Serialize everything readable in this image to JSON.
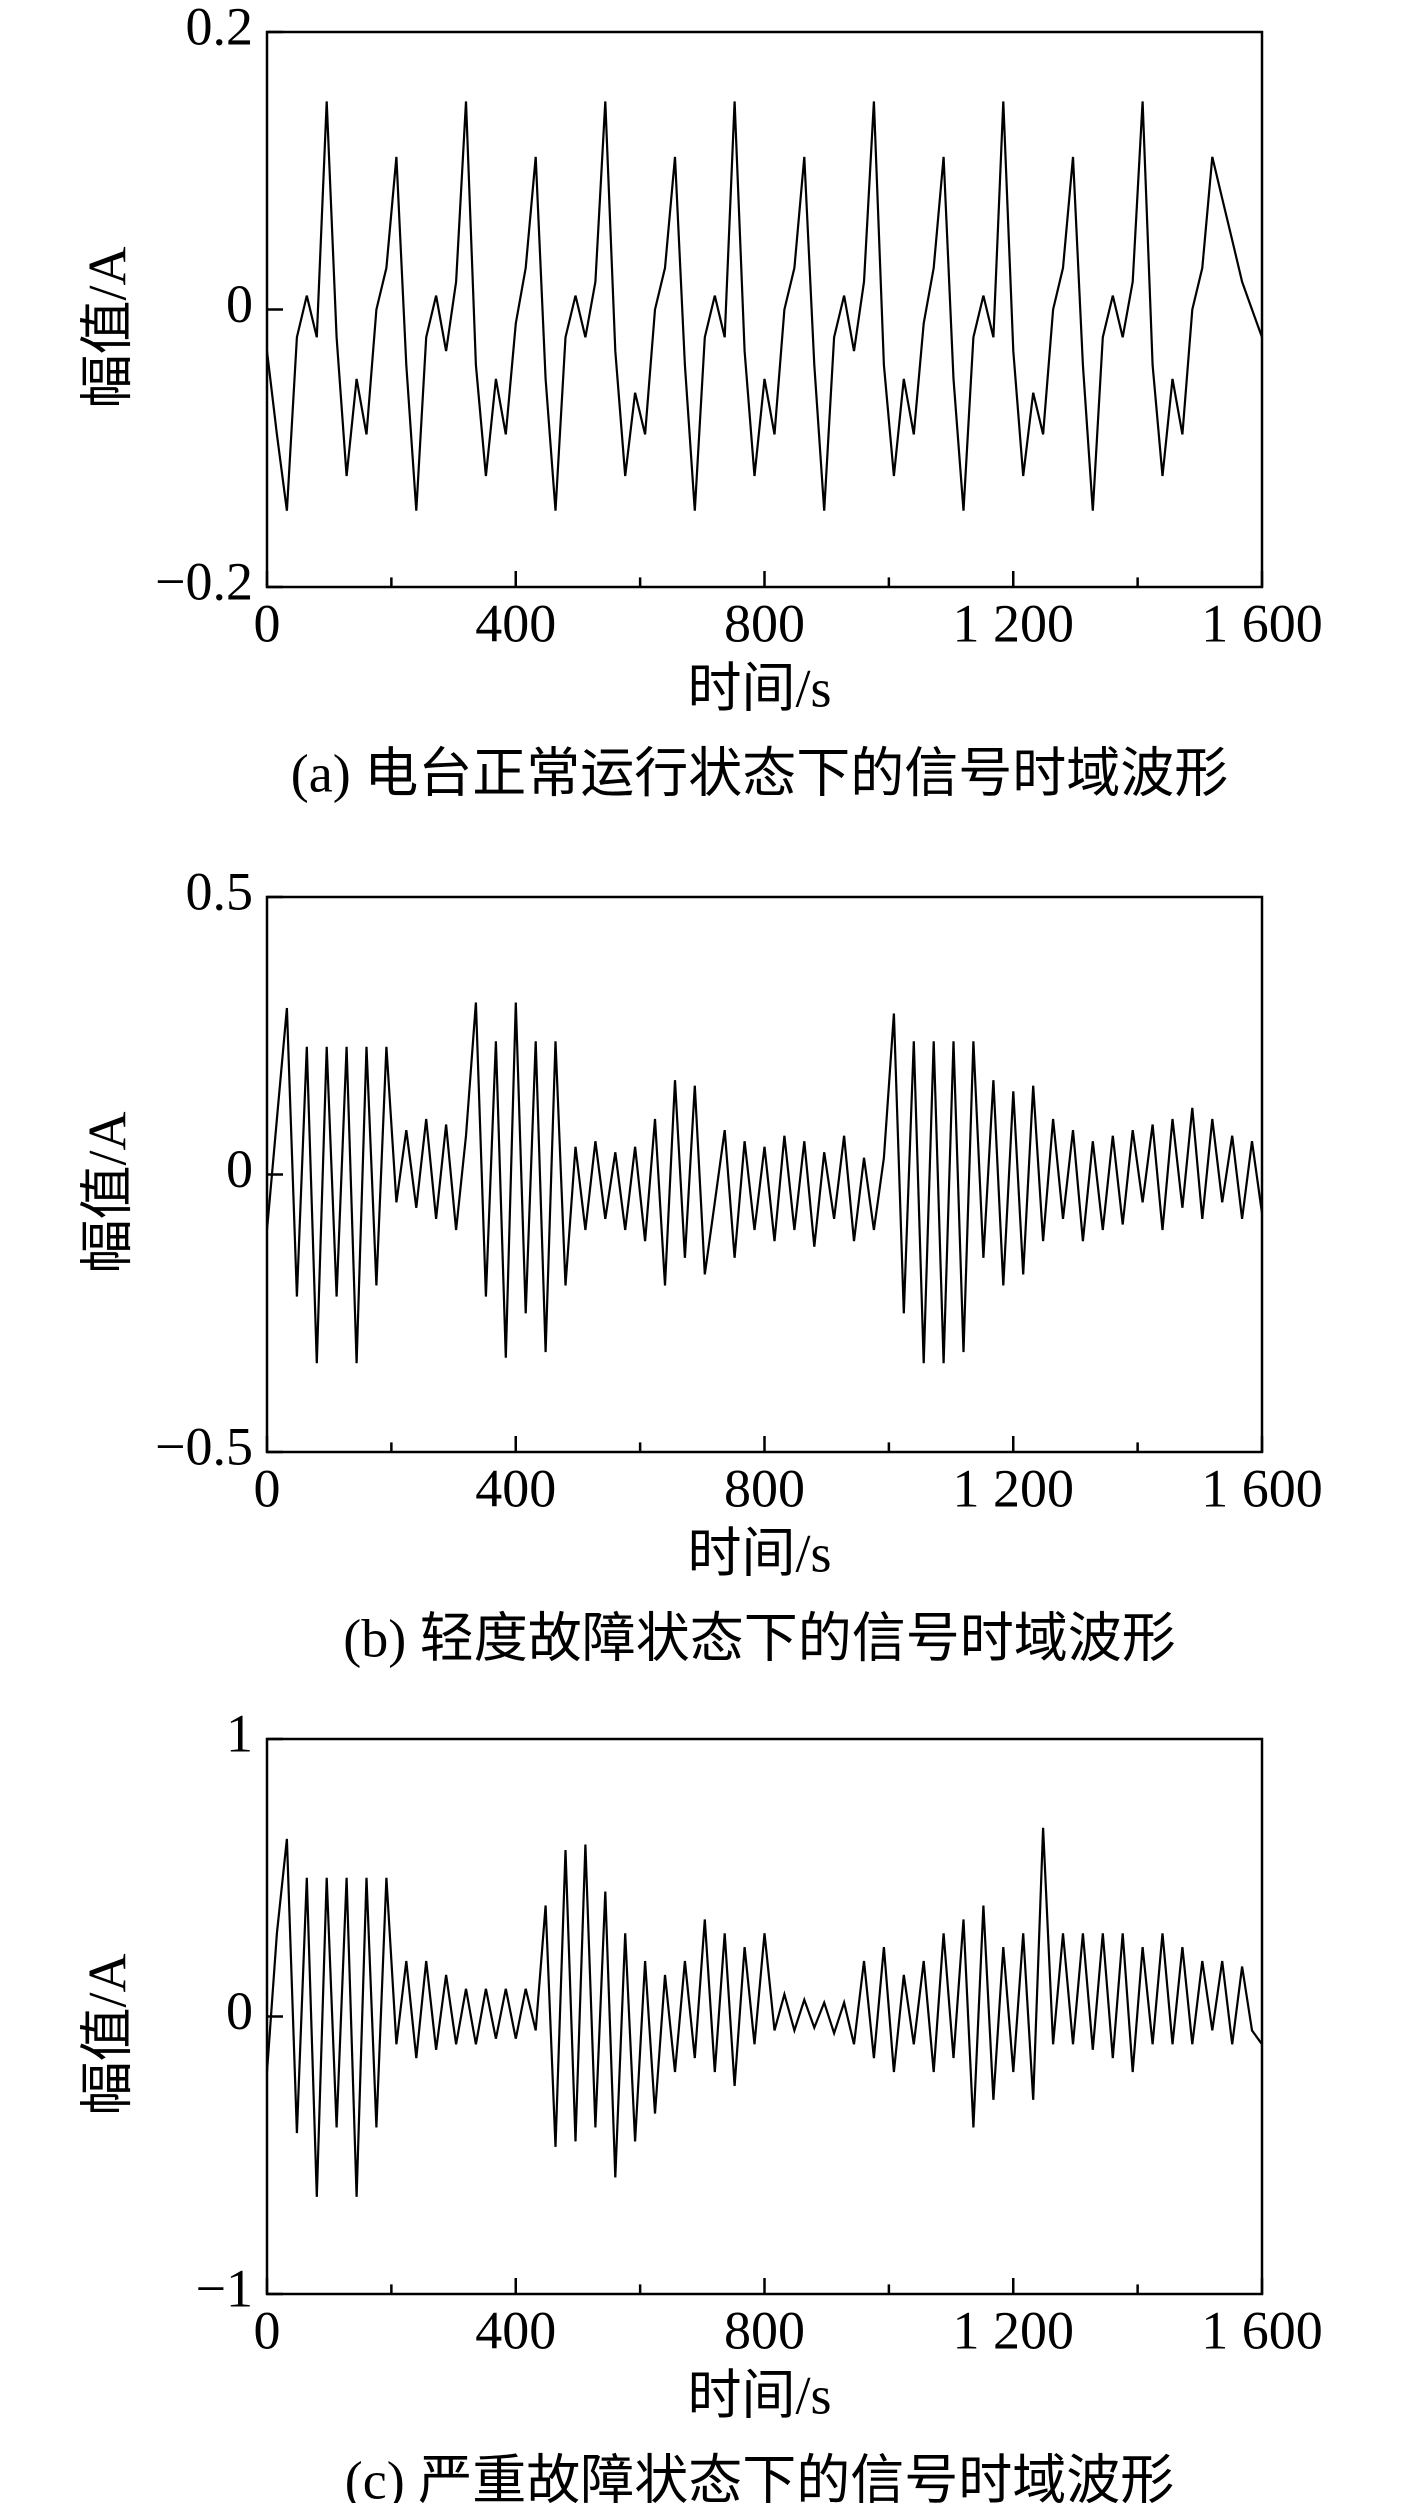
{
  "chart_data": [
    {
      "type": "line",
      "title": "(a) 电台正常运行状态下的信号时域波形",
      "xlabel": "时间/s",
      "ylabel": "幅值/A",
      "color": "#000000",
      "xlim": [
        0,
        1600
      ],
      "xticks": [
        0,
        400,
        800,
        {
          "value": 1200,
          "label": "1 200"
        },
        {
          "value": 1600,
          "label": "1 600"
        }
      ],
      "xminorticks": [
        200,
        600,
        1000,
        1400
      ],
      "ylim": [
        -0.2,
        0.2
      ],
      "yticks": [
        {
          "value": -0.2,
          "label": "−0.2"
        },
        0,
        0.2
      ],
      "x": [
        0,
        16,
        32,
        48,
        64,
        80,
        96,
        112,
        128,
        144,
        160,
        176,
        192,
        208,
        224,
        240,
        256,
        272,
        288,
        304,
        320,
        336,
        352,
        368,
        384,
        400,
        416,
        432,
        448,
        464,
        480,
        496,
        512,
        528,
        544,
        560,
        576,
        592,
        608,
        624,
        640,
        656,
        672,
        688,
        704,
        720,
        736,
        752,
        768,
        784,
        800,
        816,
        832,
        848,
        864,
        880,
        896,
        912,
        928,
        944,
        960,
        976,
        992,
        1008,
        1024,
        1040,
        1056,
        1072,
        1088,
        1104,
        1120,
        1136,
        1152,
        1168,
        1184,
        1200,
        1216,
        1232,
        1248,
        1264,
        1280,
        1296,
        1312,
        1328,
        1344,
        1360,
        1376,
        1392,
        1408,
        1424,
        1440,
        1456,
        1472,
        1488,
        1504,
        1520,
        1536,
        1552,
        1568,
        1584,
        1600
      ],
      "values": [
        -0.03,
        -0.09,
        -0.145,
        -0.02,
        0.01,
        -0.02,
        0.15,
        -0.02,
        -0.12,
        -0.05,
        -0.09,
        0.0,
        0.03,
        0.11,
        -0.04,
        -0.145,
        -0.02,
        0.01,
        -0.03,
        0.02,
        0.15,
        -0.04,
        -0.12,
        -0.05,
        -0.09,
        -0.01,
        0.03,
        0.11,
        -0.05,
        -0.145,
        -0.02,
        0.01,
        -0.02,
        0.02,
        0.15,
        -0.03,
        -0.12,
        -0.06,
        -0.09,
        0.0,
        0.03,
        0.11,
        -0.04,
        -0.145,
        -0.02,
        0.01,
        -0.02,
        0.15,
        -0.03,
        -0.12,
        -0.05,
        -0.09,
        0.0,
        0.03,
        0.11,
        -0.04,
        -0.145,
        -0.02,
        0.01,
        -0.03,
        0.02,
        0.15,
        -0.04,
        -0.12,
        -0.05,
        -0.09,
        -0.01,
        0.03,
        0.11,
        -0.05,
        -0.145,
        -0.02,
        0.01,
        -0.02,
        0.15,
        -0.03,
        -0.12,
        -0.06,
        -0.09,
        0.0,
        0.03,
        0.11,
        -0.04,
        -0.145,
        -0.02,
        0.01,
        -0.02,
        0.02,
        0.15,
        -0.04,
        -0.12,
        -0.05,
        -0.09,
        0.0,
        0.03,
        0.11,
        0.08,
        0.05,
        0.02,
        0.0,
        -0.02
      ]
    },
    {
      "type": "line",
      "title": "(b) 轻度故障状态下的信号时域波形",
      "xlabel": "时间/s",
      "ylabel": "幅值/A",
      "color": "#000000",
      "xlim": [
        0,
        1600
      ],
      "xticks": [
        0,
        400,
        800,
        {
          "value": 1200,
          "label": "1 200"
        },
        {
          "value": 1600,
          "label": "1 600"
        }
      ],
      "xminorticks": [
        200,
        600,
        1000,
        1400
      ],
      "ylim": [
        -0.5,
        0.5
      ],
      "yticks": [
        {
          "value": -0.5,
          "label": "−0.5"
        },
        0,
        0.5
      ],
      "x": [
        0,
        16,
        32,
        48,
        64,
        80,
        96,
        112,
        128,
        144,
        160,
        176,
        192,
        208,
        224,
        240,
        256,
        272,
        288,
        304,
        320,
        336,
        352,
        368,
        384,
        400,
        416,
        432,
        448,
        464,
        480,
        496,
        512,
        528,
        544,
        560,
        576,
        592,
        608,
        624,
        640,
        656,
        672,
        688,
        704,
        720,
        736,
        752,
        768,
        784,
        800,
        816,
        832,
        848,
        864,
        880,
        896,
        912,
        928,
        944,
        960,
        976,
        992,
        1008,
        1024,
        1040,
        1056,
        1072,
        1088,
        1104,
        1120,
        1136,
        1152,
        1168,
        1184,
        1200,
        1216,
        1232,
        1248,
        1264,
        1280,
        1296,
        1312,
        1328,
        1344,
        1360,
        1376,
        1392,
        1408,
        1424,
        1440,
        1456,
        1472,
        1488,
        1504,
        1520,
        1536,
        1552,
        1568,
        1584,
        1600
      ],
      "values": [
        -0.1,
        0.1,
        0.3,
        -0.22,
        0.23,
        -0.34,
        0.23,
        -0.22,
        0.23,
        -0.34,
        0.23,
        -0.2,
        0.23,
        -0.05,
        0.08,
        -0.06,
        0.1,
        -0.08,
        0.09,
        -0.1,
        0.07,
        0.31,
        -0.22,
        0.24,
        -0.33,
        0.31,
        -0.25,
        0.24,
        -0.32,
        0.24,
        -0.2,
        0.05,
        -0.1,
        0.06,
        -0.08,
        0.04,
        -0.1,
        0.05,
        -0.12,
        0.1,
        -0.2,
        0.17,
        -0.15,
        0.16,
        -0.18,
        -0.05,
        0.08,
        -0.15,
        0.06,
        -0.1,
        0.05,
        -0.12,
        0.07,
        -0.1,
        0.06,
        -0.13,
        0.04,
        -0.08,
        0.07,
        -0.12,
        0.03,
        -0.1,
        0.03,
        0.29,
        -0.25,
        0.24,
        -0.34,
        0.24,
        -0.34,
        0.24,
        -0.32,
        0.24,
        -0.15,
        0.17,
        -0.2,
        0.15,
        -0.18,
        0.16,
        -0.12,
        0.1,
        -0.08,
        0.08,
        -0.12,
        0.06,
        -0.1,
        0.07,
        -0.09,
        0.08,
        -0.05,
        0.09,
        -0.1,
        0.1,
        -0.06,
        0.12,
        -0.08,
        0.1,
        -0.05,
        0.07,
        -0.08,
        0.06,
        -0.07
      ]
    },
    {
      "type": "line",
      "title": "(c) 严重故障状态下的信号时域波形",
      "xlabel": "时间/s",
      "ylabel": "幅值/A",
      "color": "#000000",
      "xlim": [
        0,
        1600
      ],
      "xticks": [
        0,
        400,
        800,
        {
          "value": 1200,
          "label": "1 200"
        },
        {
          "value": 1600,
          "label": "1 600"
        }
      ],
      "xminorticks": [
        200,
        600,
        1000,
        1400
      ],
      "ylim": [
        -1,
        1
      ],
      "yticks": [
        {
          "value": -1,
          "label": "−1"
        },
        0,
        1
      ],
      "x": [
        0,
        16,
        32,
        48,
        64,
        80,
        96,
        112,
        128,
        144,
        160,
        176,
        192,
        208,
        224,
        240,
        256,
        272,
        288,
        304,
        320,
        336,
        352,
        368,
        384,
        400,
        416,
        432,
        448,
        464,
        480,
        496,
        512,
        528,
        544,
        560,
        576,
        592,
        608,
        624,
        640,
        656,
        672,
        688,
        704,
        720,
        736,
        752,
        768,
        784,
        800,
        816,
        832,
        848,
        864,
        880,
        896,
        912,
        928,
        944,
        960,
        976,
        992,
        1008,
        1024,
        1040,
        1056,
        1072,
        1088,
        1104,
        1120,
        1136,
        1152,
        1168,
        1184,
        1200,
        1216,
        1232,
        1248,
        1264,
        1280,
        1296,
        1312,
        1328,
        1344,
        1360,
        1376,
        1392,
        1408,
        1424,
        1440,
        1456,
        1472,
        1488,
        1504,
        1520,
        1536,
        1552,
        1568,
        1584,
        1600
      ],
      "values": [
        -0.2,
        0.3,
        0.64,
        -0.42,
        0.5,
        -0.65,
        0.5,
        -0.4,
        0.5,
        -0.65,
        0.5,
        -0.4,
        0.5,
        -0.1,
        0.2,
        -0.15,
        0.2,
        -0.12,
        0.15,
        -0.1,
        0.1,
        -0.1,
        0.1,
        -0.08,
        0.1,
        -0.08,
        0.1,
        -0.05,
        0.4,
        -0.47,
        0.6,
        -0.45,
        0.62,
        -0.4,
        0.45,
        -0.58,
        0.3,
        -0.45,
        0.2,
        -0.35,
        0.15,
        -0.2,
        0.2,
        -0.15,
        0.35,
        -0.2,
        0.3,
        -0.25,
        0.25,
        -0.1,
        0.3,
        -0.05,
        0.08,
        -0.05,
        0.06,
        -0.04,
        0.05,
        -0.06,
        0.05,
        -0.1,
        0.2,
        -0.15,
        0.25,
        -0.2,
        0.15,
        -0.1,
        0.2,
        -0.2,
        0.3,
        -0.15,
        0.35,
        -0.4,
        0.4,
        -0.3,
        0.25,
        -0.2,
        0.3,
        -0.3,
        0.68,
        -0.1,
        0.3,
        -0.1,
        0.3,
        -0.12,
        0.3,
        -0.15,
        0.3,
        -0.2,
        0.25,
        -0.1,
        0.3,
        -0.1,
        0.25,
        -0.1,
        0.2,
        -0.05,
        0.2,
        -0.1,
        0.18,
        -0.05,
        -0.1
      ]
    }
  ]
}
